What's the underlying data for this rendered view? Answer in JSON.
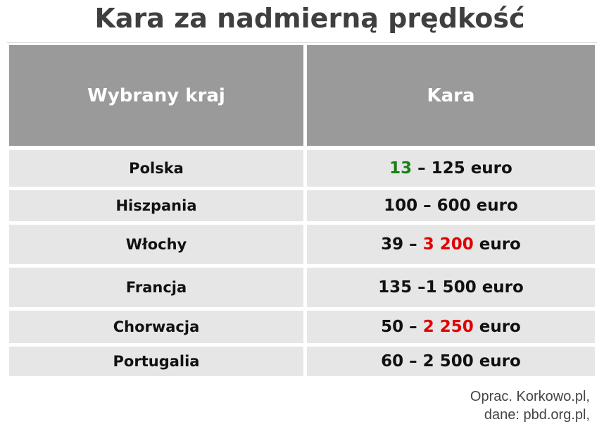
{
  "title": "Kara za nadmierną prędkość",
  "table": {
    "header": [
      "Wybrany kraj",
      "Kara"
    ],
    "rows": [
      [
        "Polska",
        [
          {
            "text": "13",
            "color": "#1a7f1a"
          },
          {
            "text": " – 125 euro"
          }
        ]
      ],
      [
        "Hiszpania",
        [
          {
            "text": "100 – 600 euro"
          }
        ]
      ],
      [
        "Włochy",
        [
          {
            "text": "39 – "
          },
          {
            "text": "3 200",
            "color": "#e00000"
          },
          {
            "text": " euro"
          }
        ]
      ],
      [
        "Francja",
        [
          {
            "text": "135 –1 500 euro"
          }
        ]
      ],
      [
        "Chorwacja",
        [
          {
            "text": "50 – "
          },
          {
            "text": "2 250",
            "color": "#e00000"
          },
          {
            "text": " euro"
          }
        ]
      ],
      [
        "Portugalia",
        [
          {
            "text": "60 – 2 500 euro"
          }
        ]
      ]
    ]
  },
  "footer": [
    "Oprac. Korkowo.pl,",
    "dane: pbd.org.pl,"
  ]
}
